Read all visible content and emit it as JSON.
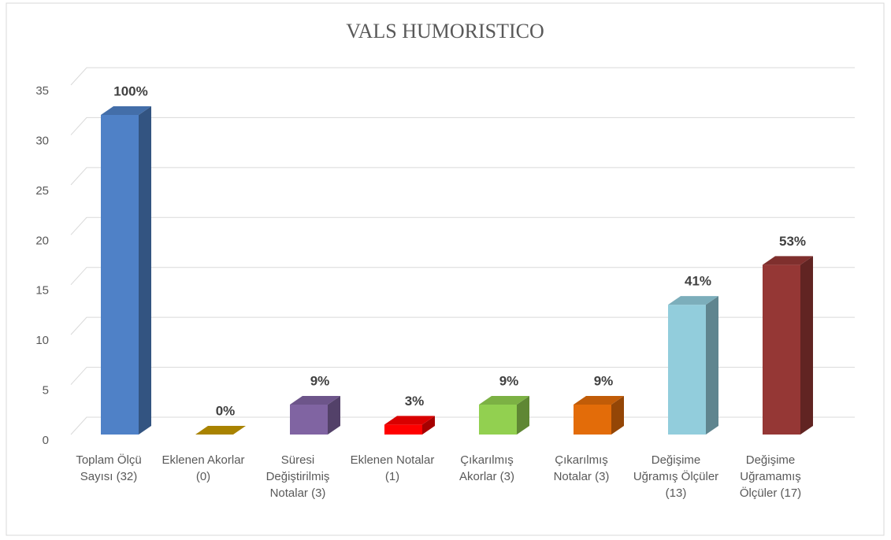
{
  "chart_data": {
    "type": "bar3d",
    "title": "VALS HUMORISTICO",
    "categories": [
      "Toplam Ölçü Sayısı (32)",
      "Eklenen Akorlar (0)",
      "Süresi Değiştirilmiş Notalar (3)",
      "Eklenen Notalar (1)",
      "Çıkarılmış Akorlar (3)",
      "Çıkarılmış Notalar (3)",
      "Değişime Uğramış Ölçüler (13)",
      "Değişime Uğramamış Ölçüler (17)"
    ],
    "values": [
      32,
      0,
      3,
      1,
      3,
      3,
      13,
      17
    ],
    "percent_labels": [
      "100%",
      "0%",
      "9%",
      "3%",
      "9%",
      "9%",
      "41%",
      "53%"
    ],
    "colors": [
      "#4f81c7",
      "#c79a00",
      "#8064a2",
      "#ff0000",
      "#92d050",
      "#e36c09",
      "#92cddc",
      "#953735"
    ],
    "ylim": [
      0,
      35
    ],
    "yticks": [
      0,
      5,
      10,
      15,
      20,
      25,
      30,
      35
    ],
    "grid": true
  }
}
